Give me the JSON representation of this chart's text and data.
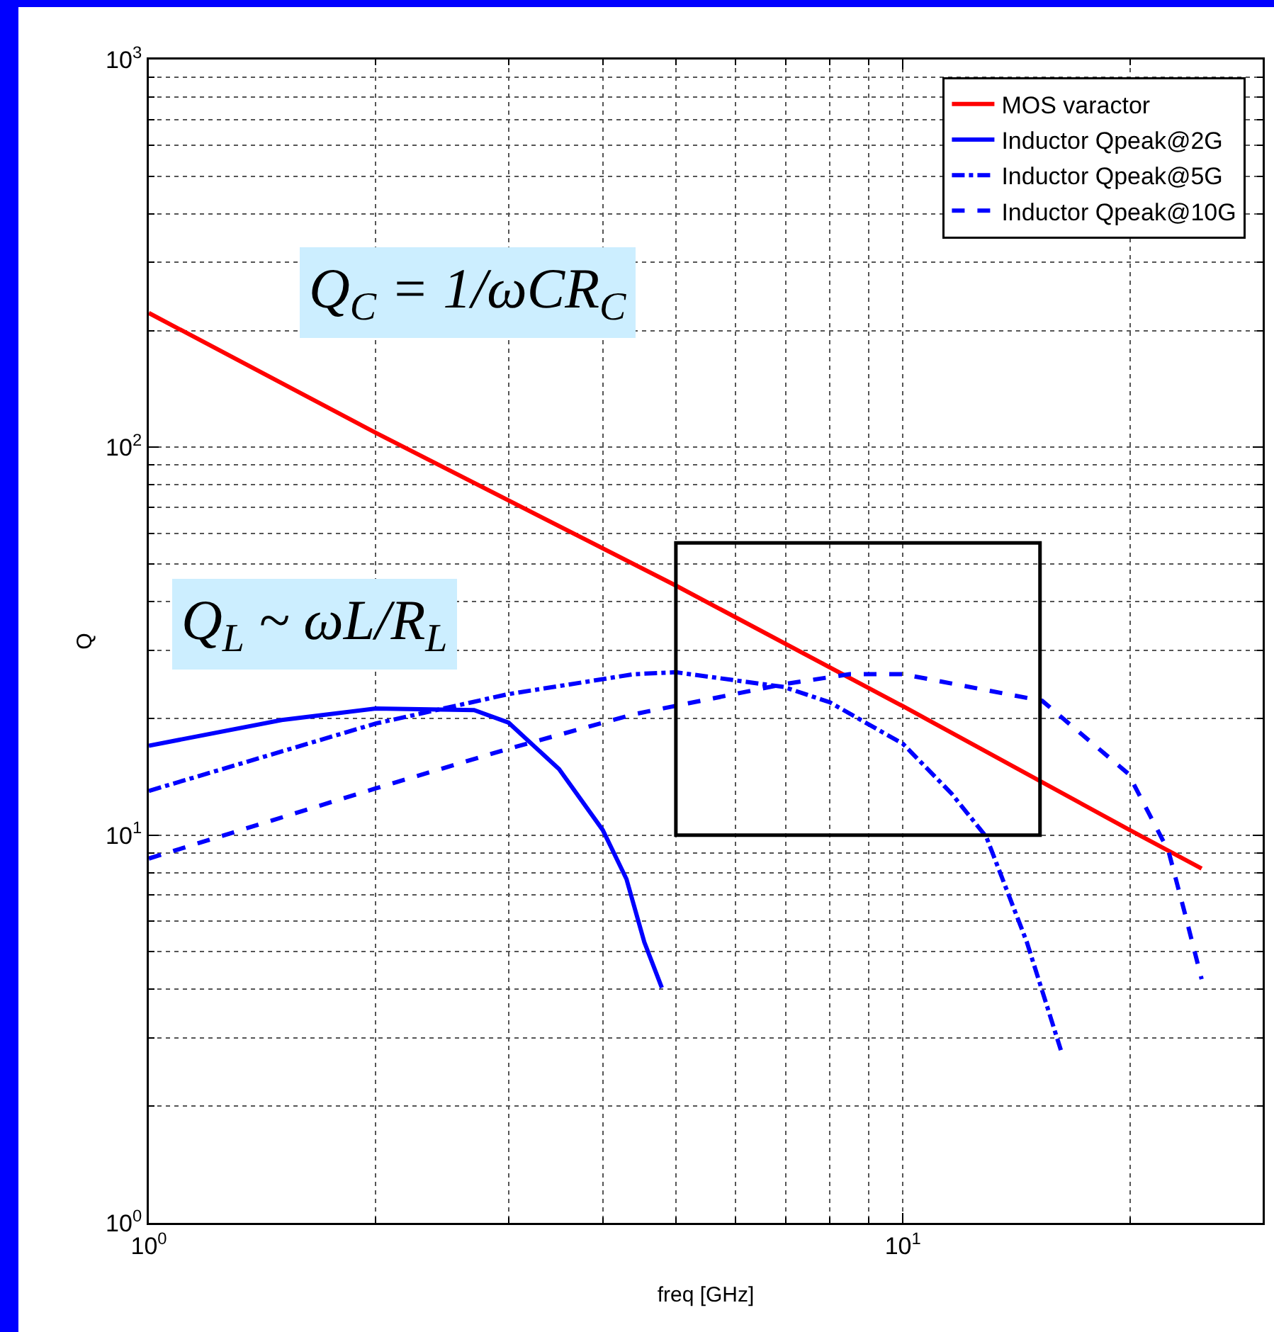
{
  "chart_data": {
    "type": "line",
    "xlabel": "freq [GHz]",
    "ylabel": "Q",
    "log": "xy",
    "grid": true,
    "legend": "top right",
    "marker": "none",
    "xlim": [
      1,
      30
    ],
    "ylim": [
      1,
      1000
    ],
    "xticks": [
      {
        "value": 1,
        "label": "10$^{0}$"
      },
      {
        "value": 10,
        "label": "10$^{1}$"
      }
    ],
    "yticks": [
      {
        "value": 1,
        "label": "10$^{0}$"
      },
      {
        "value": 10,
        "label": "10$^{1}$"
      },
      {
        "value": 100,
        "label": "10$^{2}$"
      },
      {
        "value": 1000,
        "label": "10$^{3}$"
      }
    ],
    "annotations": [
      "Q$_{C}$ = 1/ωCR$_{C}$",
      "Q$_{L}$ ~ ωL/R$_{L}$"
    ],
    "series": [
      {
        "name": "MOS varactor",
        "color": "#ff0000",
        "line_style": "solid",
        "x": [
          1,
          2,
          5,
          10,
          20,
          24.9
        ],
        "values": [
          222,
          109,
          44,
          21.5,
          10.3,
          8.2
        ]
      },
      {
        "name": "Inductor Qpeak@2G",
        "color": "#0000ff",
        "line_style": "solid",
        "x": [
          1,
          1.5,
          2,
          2.7,
          3,
          3.5,
          4,
          4.3,
          4.54,
          4.79
        ],
        "values": [
          17,
          19.8,
          21.2,
          21,
          19.5,
          14.8,
          10.3,
          7.7,
          5.3,
          4.04
        ]
      },
      {
        "name": "Inductor Qpeak@5G",
        "color": "#0000ff",
        "line_style": "dashdot",
        "x": [
          1,
          2,
          3,
          4.4,
          5,
          6.95,
          8,
          10,
          11.6,
          12.9,
          14.6,
          16.2
        ],
        "values": [
          13,
          19.4,
          23.1,
          26,
          26.3,
          24.1,
          22,
          17.2,
          12.8,
          9.9,
          5.3,
          2.79
        ]
      },
      {
        "name": "Inductor Qpeak@10G",
        "color": "#0000ff",
        "line_style": "dashed",
        "x": [
          1,
          2,
          3,
          4.4,
          6.95,
          8.5,
          10,
          15.3,
          19.9,
          22.5,
          23.7,
          24.9
        ],
        "values": [
          8.7,
          13.2,
          16.7,
          20.5,
          24.5,
          26,
          26,
          22.2,
          14.4,
          9.1,
          6.2,
          4.25
        ]
      }
    ]
  }
}
